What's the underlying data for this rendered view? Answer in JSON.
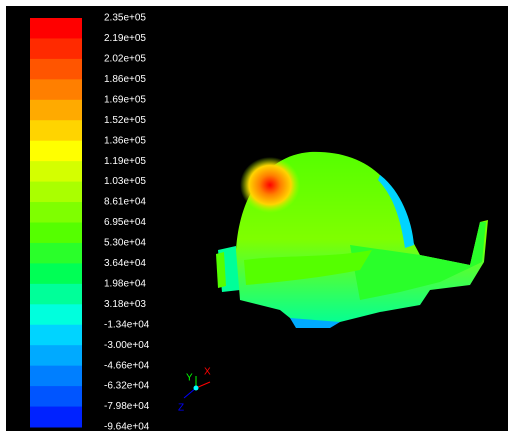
{
  "colorbar": {
    "labels": [
      "2.35e+05",
      "2.19e+05",
      "2.02e+05",
      "1.86e+05",
      "1.69e+05",
      "1.52e+05",
      "1.36e+05",
      "1.19e+05",
      "1.03e+05",
      "8.61e+04",
      "6.95e+04",
      "5.30e+04",
      "3.64e+04",
      "1.98e+04",
      "3.18e+03",
      "-1.34e+04",
      "-3.00e+04",
      "-4.66e+04",
      "-6.32e+04",
      "-7.98e+04",
      "-9.64e+04"
    ],
    "colors": [
      "#ff0000",
      "#ff2a00",
      "#ff5500",
      "#ff7f00",
      "#ffaa00",
      "#ffd400",
      "#ffff00",
      "#d4ff00",
      "#aaff00",
      "#7fff00",
      "#55ff00",
      "#2aff2a",
      "#00ff55",
      "#00ff99",
      "#00ffdd",
      "#00d4ff",
      "#00aaff",
      "#007fff",
      "#0055ff",
      "#0022ff"
    ]
  },
  "axes": {
    "y": "Y",
    "x": "X",
    "z": "Z"
  }
}
